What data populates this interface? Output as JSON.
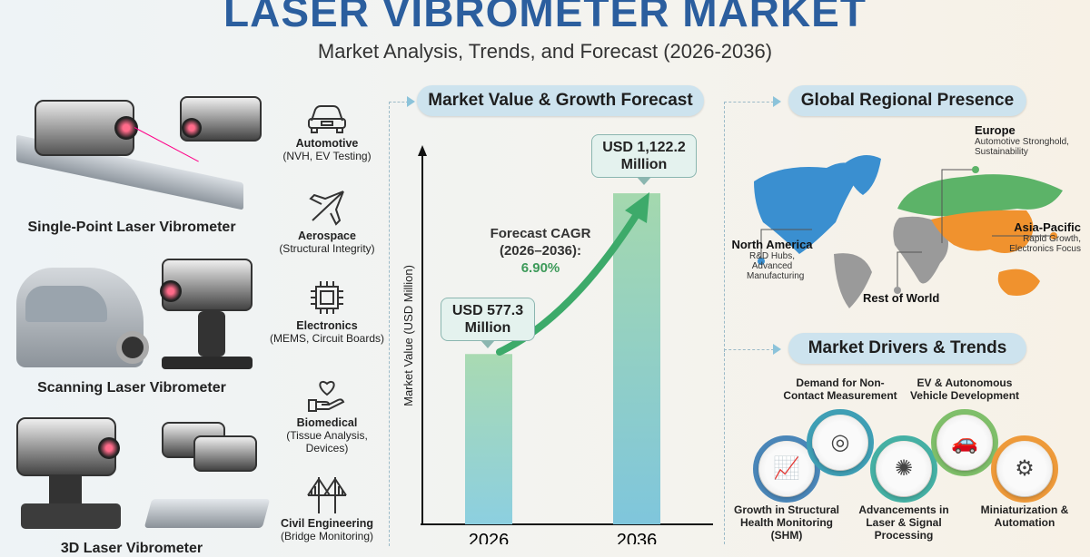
{
  "header": {
    "title": "LASER VIBROMETER MARKET",
    "subtitle": "Market Analysis, Trends, and Forecast (2026-2036)"
  },
  "devices": [
    {
      "label": "Single-Point Laser Vibrometer"
    },
    {
      "label": "Scanning Laser Vibrometer"
    },
    {
      "label": "3D Laser Vibrometer"
    }
  ],
  "industries": [
    {
      "name": "Automotive",
      "detail": "(NVH, EV Testing)",
      "icon": "car-icon"
    },
    {
      "name": "Aerospace",
      "detail": "(Structural Integrity)",
      "icon": "airplane-icon"
    },
    {
      "name": "Electronics",
      "detail": "(MEMS, Circuit Boards)",
      "icon": "chip-icon"
    },
    {
      "name": "Biomedical",
      "detail": "(Tissue Analysis, Devices)",
      "icon": "heart-hand-icon"
    },
    {
      "name": "Civil Engineering",
      "detail": "(Bridge Monitoring)",
      "icon": "bridge-icon"
    }
  ],
  "forecast": {
    "heading": "Market Value & Growth Forecast",
    "cagr_label": "Forecast CAGR (2026–2036):",
    "cagr_value": "6.90%",
    "callouts": [
      "USD 577.3 Million",
      "USD 1,122.2 Million"
    ]
  },
  "chart_data": {
    "type": "bar",
    "categories": [
      "2026",
      "2036"
    ],
    "values": [
      577.3,
      1122.2
    ],
    "ylabel": "Market Value (USD Million)",
    "xlabel": "",
    "ylim": [
      0,
      1270
    ],
    "grid": false,
    "colors": [
      "#a8d8b0",
      "#86c8d8"
    ]
  },
  "regions": {
    "heading": "Global Regional Presence",
    "items": [
      {
        "name": "Europe",
        "detail": "Automotive Stronghold, Sustainability",
        "color": "#5cb368"
      },
      {
        "name": "North America",
        "detail": "R&D Hubs, Advanced Manufacturing",
        "color": "#3a8fd0"
      },
      {
        "name": "Asia-Pacific",
        "detail": "Rapid Growth, Electronics Focus",
        "color": "#f0922e"
      },
      {
        "name": "Rest of World",
        "detail": "",
        "color": "#9a9a9a"
      }
    ]
  },
  "drivers": {
    "heading": "Market Drivers & Trends",
    "items": [
      {
        "label": "Growth in Structural Health Monitoring (SHM)",
        "icon": "growth-chart-icon",
        "color": "#4a86b8"
      },
      {
        "label": "Demand for Non-Contact Measurement",
        "icon": "target-arrows-icon",
        "color": "#3f9fb5"
      },
      {
        "label": "Advancements in Laser & Signal Processing",
        "icon": "circuit-icon",
        "color": "#45b0a4"
      },
      {
        "label": "EV & Autonomous Vehicle Development",
        "icon": "car-icon",
        "color": "#7fbf6a"
      },
      {
        "label": "Miniaturization & Automation",
        "icon": "gears-icon",
        "color": "#ee9a3a"
      }
    ]
  }
}
